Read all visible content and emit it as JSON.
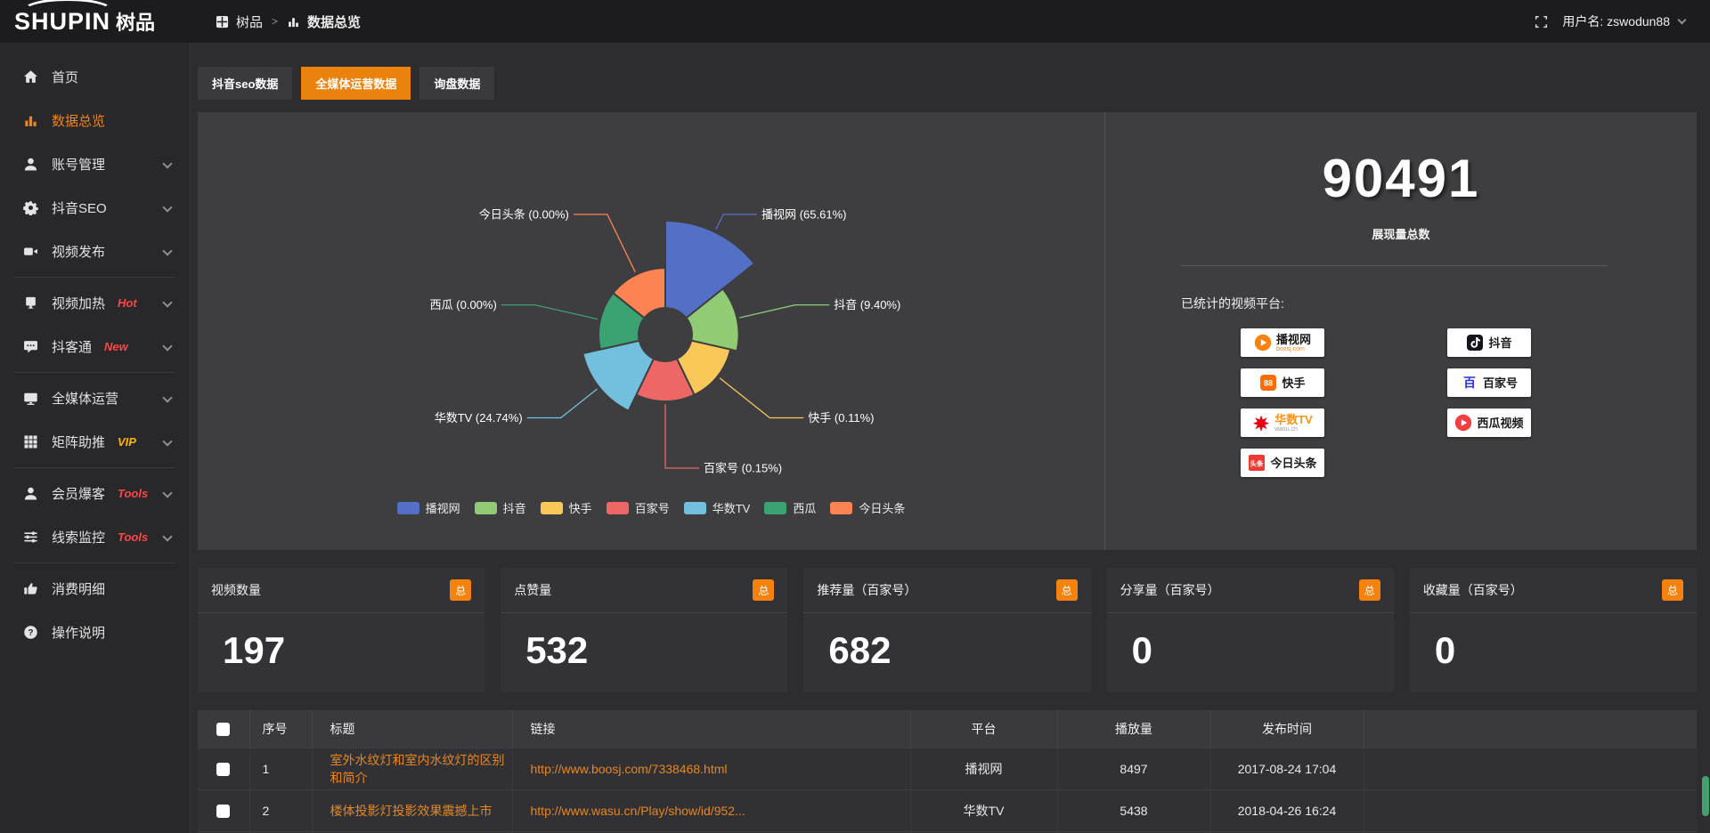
{
  "app": {
    "logo_en": "SHUPIN",
    "logo_cn": "树品"
  },
  "header": {
    "breadcrumb": {
      "root": "树品",
      "sep": ">",
      "current": "数据总览"
    },
    "user_label": "用户名: zswodun88"
  },
  "sidebar": {
    "items": [
      {
        "id": "home",
        "label": "首页",
        "icon": "home"
      },
      {
        "id": "overview",
        "label": "数据总览",
        "icon": "chart",
        "active": true
      },
      {
        "id": "account",
        "label": "账号管理",
        "icon": "user",
        "chevron": true
      },
      {
        "id": "douyin-seo",
        "label": "抖音SEO",
        "icon": "gear",
        "chevron": true
      },
      {
        "id": "publish",
        "label": "视频发布",
        "icon": "publish",
        "chevron": true,
        "divider_after": true
      },
      {
        "id": "heat",
        "label": "视频加热",
        "icon": "heat",
        "badge": "Hot",
        "badge_color": "#ff4545",
        "chevron": true
      },
      {
        "id": "douketong",
        "label": "抖客通",
        "icon": "chat",
        "badge": "New",
        "badge_color": "#ff4545",
        "chevron": true,
        "divider_after": true
      },
      {
        "id": "media",
        "label": "全媒体运营",
        "icon": "monitor",
        "chevron": true
      },
      {
        "id": "matrix",
        "label": "矩阵助推",
        "icon": "grid",
        "badge": "VIP",
        "badge_color": "#ffb400",
        "chevron": true,
        "divider_after": true
      },
      {
        "id": "member",
        "label": "会员爆客",
        "icon": "user",
        "badge": "Tools",
        "badge_color": "#ff4545",
        "chevron": true
      },
      {
        "id": "clue",
        "label": "线索监控",
        "icon": "sliders",
        "badge": "Tools",
        "badge_color": "#ff4545",
        "chevron": true,
        "divider_after": true
      },
      {
        "id": "spend",
        "label": "消费明细",
        "icon": "spend"
      },
      {
        "id": "help",
        "label": "操作说明",
        "icon": "help"
      }
    ]
  },
  "tabs": [
    {
      "id": "douyin-seo-data",
      "label": "抖音seo数据",
      "active": false
    },
    {
      "id": "media-op-data",
      "label": "全媒体运营数据",
      "active": true
    },
    {
      "id": "inquiry-data",
      "label": "询盘数据",
      "active": false
    }
  ],
  "chart_data": {
    "type": "pie",
    "variant": "nightingale-rose",
    "donut": true,
    "labels": [
      "播视网",
      "抖音",
      "快手",
      "百家号",
      "华数TV",
      "西瓜",
      "今日头条"
    ],
    "values_pct": [
      65.61,
      9.4,
      0.11,
      0.15,
      24.74,
      0.0,
      0.0
    ],
    "pct_text": [
      "65.61%",
      "9.40%",
      "0.11%",
      "0.15%",
      "24.74%",
      "0.00%",
      "0.00%"
    ],
    "colors": [
      "#5470c6",
      "#91cc75",
      "#fac858",
      "#ee6666",
      "#73c0de",
      "#3ba272",
      "#fc8452"
    ],
    "legend_position": "bottom"
  },
  "summary": {
    "total_value": "90491",
    "total_label": "展现量总数",
    "platforms_title": "已统计的视频平台:",
    "platform_columns": [
      [
        {
          "id": "boosj",
          "label": "播视网",
          "sub": "boosj.com",
          "sub_color": "#f7820f"
        },
        {
          "id": "kuaishou",
          "label": "快手"
        },
        {
          "id": "wasu",
          "label": "华数TV",
          "label_color": "#f7941d",
          "sub": "wasu.cn",
          "sub_color": "#999999"
        },
        {
          "id": "toutiao",
          "label": "今日头条",
          "icon_text": "头条"
        }
      ],
      [
        {
          "id": "douyin",
          "label": "抖音"
        },
        {
          "id": "baijiahao",
          "label": "百家号",
          "icon_text": "百"
        },
        {
          "id": "xigua",
          "label": "西瓜视频"
        }
      ]
    ]
  },
  "stat_cards": {
    "badge": "总",
    "items": [
      {
        "title": "视频数量",
        "value": "197"
      },
      {
        "title": "点赞量",
        "value": "532"
      },
      {
        "title": "推荐量（百家号）",
        "value": "682"
      },
      {
        "title": "分享量（百家号）",
        "value": "0"
      },
      {
        "title": "收藏量（百家号）",
        "value": "0"
      }
    ]
  },
  "table": {
    "headers": [
      "序号",
      "标题",
      "链接",
      "平台",
      "播放量",
      "发布时间"
    ],
    "rows": [
      {
        "no": "1",
        "title": "室外水纹灯和室内水纹灯的区别和简介",
        "link": "http://www.boosj.com/7338468.html",
        "platform": "播视网",
        "views": "8497",
        "time": "2017-08-24 17:04"
      },
      {
        "no": "2",
        "title": "楼体投影灯投影效果震撼上市",
        "link": "http://www.wasu.cn/Play/show/id/952...",
        "platform": "华数TV",
        "views": "5438",
        "time": "2018-04-26 16:24"
      }
    ]
  },
  "colors": {
    "accent": "#f08519",
    "tab_active": "#ea820d",
    "link": "#e8861c"
  }
}
